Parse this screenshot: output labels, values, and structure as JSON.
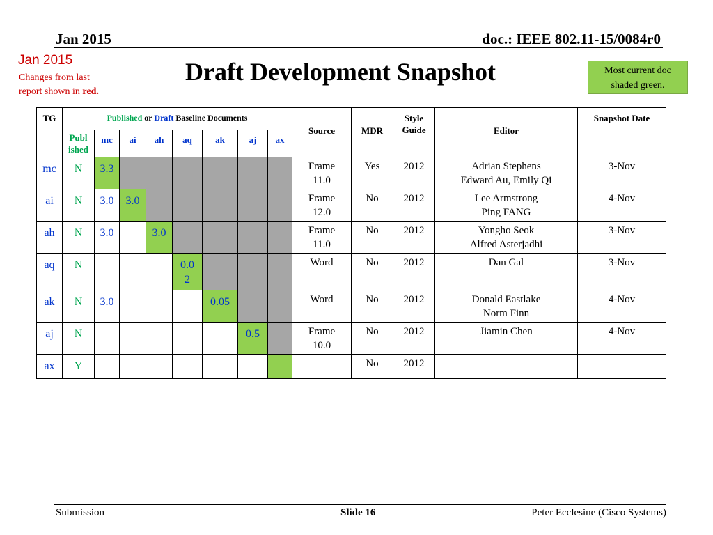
{
  "header": {
    "date": "Jan 2015",
    "doc": "doc.: IEEE 802.11-15/0084r0"
  },
  "changes": {
    "date": "Jan 2015",
    "line1": "Changes from  last",
    "line2_prefix": "report shown in ",
    "line2_red": "red."
  },
  "title": "Draft Development Snapshot",
  "note": {
    "line1": "Most current doc",
    "line2": "shaded green."
  },
  "table": {
    "head": {
      "tg": "TG",
      "baseline_published": "Published",
      "baseline_or": " or ",
      "baseline_draft": "Draft",
      "baseline_rest": " Baseline Documents",
      "publ_line1": "Publ",
      "publ_line2": "ished",
      "cols": [
        "mc",
        "ai",
        "ah",
        "aq",
        "ak",
        "aj",
        "ax"
      ],
      "source": "Source",
      "mdr": "MDR",
      "style_line1": "Style",
      "style_line2": "Guide",
      "editor": "Editor",
      "snapshot": "Snapshot Date"
    },
    "rows": [
      {
        "tg": "mc",
        "pub": "N",
        "mc": "3.3",
        "ai": "",
        "ah": "",
        "aq": "",
        "ak": "",
        "aj": "",
        "ax": "",
        "src1": "Frame",
        "src2": "11.0",
        "mdr": "Yes",
        "style": "2012",
        "ed1": "Adrian Stephens",
        "ed2": "Edward Au, Emily Qi",
        "date": "3-Nov"
      },
      {
        "tg": "ai",
        "pub": "N",
        "mc": "3.0",
        "ai": "3.0",
        "ah": "",
        "aq": "",
        "ak": "",
        "aj": "",
        "ax": "",
        "src1": "Frame",
        "src2": "12.0",
        "mdr": "No",
        "style": "2012",
        "ed1": "Lee Armstrong",
        "ed2": "Ping FANG",
        "date": "4-Nov"
      },
      {
        "tg": "ah",
        "pub": "N",
        "mc": "3.0",
        "ai": "",
        "ah": "3.0",
        "aq": "",
        "ak": "",
        "aj": "",
        "ax": "",
        "src1": "Frame",
        "src2": "11.0",
        "mdr": "No",
        "style": "2012",
        "ed1": "Yongho Seok",
        "ed2": "Alfred Asterjadhi",
        "date": "3-Nov"
      },
      {
        "tg": "aq",
        "pub": "N",
        "mc": "",
        "ai": "",
        "ah": "",
        "aq1": "0.0",
        "aq2": "2",
        "ak": "",
        "aj": "",
        "ax": "",
        "src1": "Word",
        "src2": "",
        "mdr": "No",
        "style": "2012",
        "ed1": "Dan Gal",
        "ed2": "",
        "date": "3-Nov"
      },
      {
        "tg": "ak",
        "pub": "N",
        "mc": "3.0",
        "ai": "",
        "ah": "",
        "aq": "",
        "ak": "0.05",
        "aj": "",
        "ax": "",
        "src1": "Word",
        "src2": "",
        "mdr": "No",
        "style": "2012",
        "ed1": "Donald Eastlake",
        "ed2": "Norm Finn",
        "date": "4-Nov"
      },
      {
        "tg": "aj",
        "pub": "N",
        "mc": "",
        "ai": "",
        "ah": "",
        "aq": "",
        "ak": "",
        "aj": "0.5",
        "ax": "",
        "src1": "Frame",
        "src2": "10.0",
        "mdr": "No",
        "style": "2012",
        "ed1": "Jiamin Chen",
        "ed2": "",
        "date": "4-Nov"
      },
      {
        "tg": "ax",
        "pub": "Y",
        "mc": "",
        "ai": "",
        "ah": "",
        "aq": "",
        "ak": "",
        "aj": "",
        "ax": "",
        "src1": "",
        "src2": "",
        "mdr": "No",
        "style": "2012",
        "ed1": "",
        "ed2": "",
        "date": ""
      }
    ]
  },
  "footer": {
    "left": "Submission",
    "mid": "Slide 16",
    "right": "Peter Ecclesine (Cisco Systems)"
  },
  "colors": {
    "green_shade": "#92d050",
    "gray_shade": "#a6a6a6",
    "red_text": "#cc0000",
    "blue_text": "#0033cc",
    "green_text": "#00a650"
  }
}
